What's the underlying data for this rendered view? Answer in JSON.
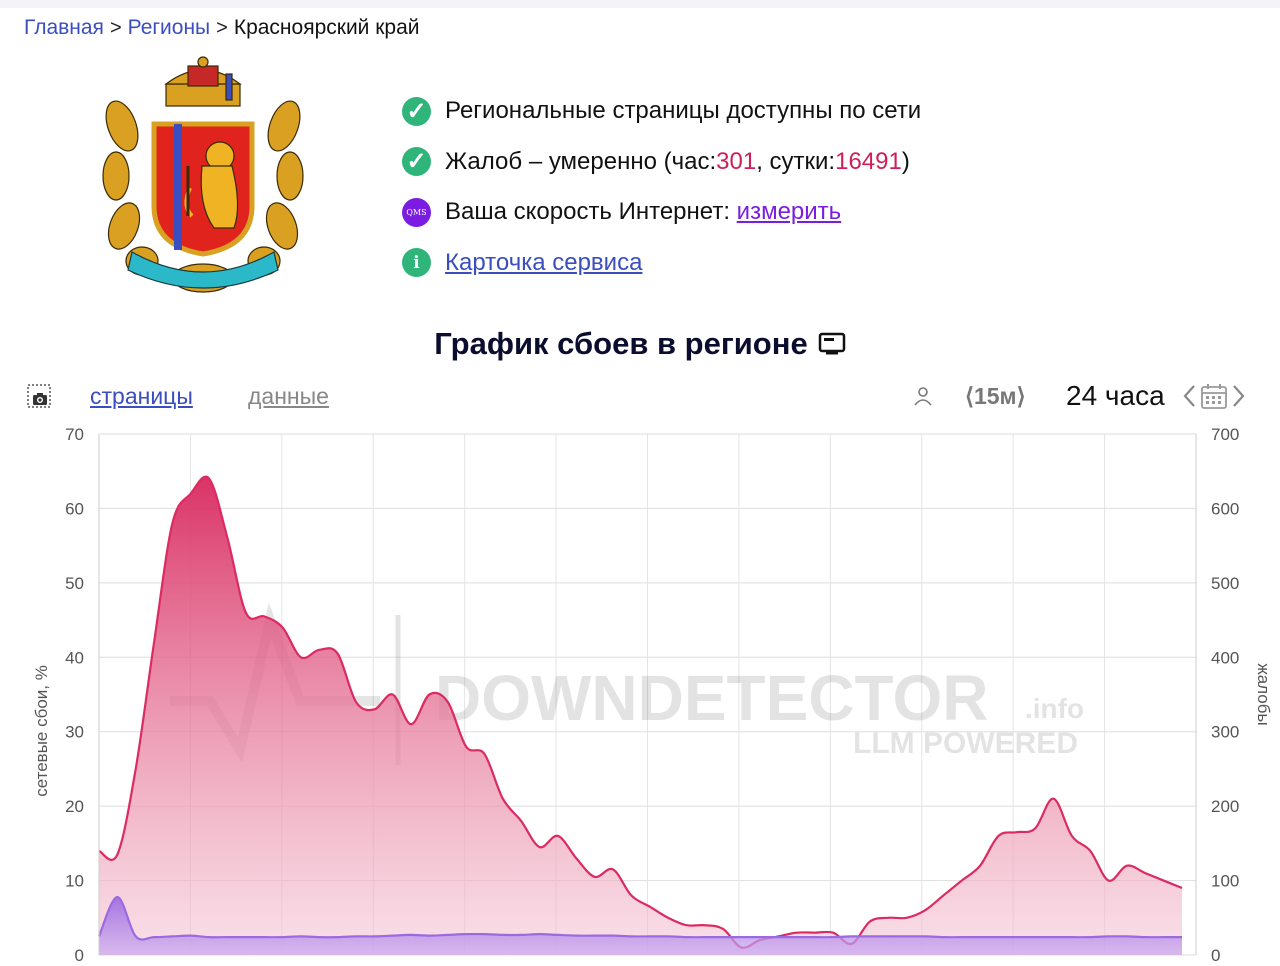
{
  "breadcrumb": {
    "items": [
      "Главная",
      "Регионы"
    ],
    "current": "Красноярский край",
    "separator": ">"
  },
  "status": {
    "pages_available": "Региональные страницы доступны по сети",
    "complaints_prefix": "Жалоб – умеренно (час: ",
    "complaints_hour": "301",
    "complaints_mid": ", сутки: ",
    "complaints_day": "16491",
    "complaints_suffix": ")",
    "speed_prefix": "Ваша скорость Интернет: ",
    "speed_link": "измерить",
    "service_card": "Карточка сервиса",
    "qms_badge": "QMS",
    "info_badge": "i"
  },
  "chart_section": {
    "title": "График сбоев в регионе"
  },
  "toolbar": {
    "tab_pages": "страницы",
    "tab_data": "данные",
    "interval": "⟨15м⟩",
    "period": "24 часа"
  },
  "watermark": {
    "brand": "DOWNDETECTOR",
    "suffix": ".info",
    "tagline": "LLM POWERED"
  },
  "colors": {
    "failures_line": "#dc2a62",
    "complaints_line": "#9b6ae0",
    "link": "#3b4ec0",
    "accent_number": "#d01f57",
    "ok_icon": "#2fb57a",
    "qms_icon": "#7a1de0"
  },
  "chart_data": {
    "type": "area",
    "title": "График сбоев в регионе",
    "ylabel": "сетевые сбои, %",
    "y2label": "жалобы",
    "ylim": [
      0,
      70
    ],
    "y2lim": [
      0,
      700
    ],
    "yticks": [
      "0",
      "10",
      "20",
      "30",
      "40",
      "50",
      "60",
      "70"
    ],
    "y2ticks": [
      "0",
      "100",
      "200",
      "300",
      "400",
      "500",
      "600",
      "700"
    ],
    "grid": true,
    "x_count": 60,
    "series": [
      {
        "axis": "left",
        "color": "#dc2a62",
        "values": [
          14,
          13.5,
          25,
          42,
          58,
          62,
          64,
          56,
          46,
          45.5,
          44,
          40,
          41,
          40.5,
          34,
          33,
          35,
          31,
          35,
          34,
          28,
          27,
          21,
          18,
          14.5,
          16,
          13,
          10.5,
          11.5,
          8,
          6.5,
          5,
          4,
          4,
          3.5,
          1,
          2,
          2.5,
          3,
          3,
          3,
          1.5,
          4.5,
          5,
          5,
          6,
          8,
          10,
          12,
          16,
          16.5,
          17,
          21,
          16,
          14,
          10,
          12,
          11,
          10,
          9
        ]
      },
      {
        "axis": "right",
        "color": "#9b6ae0",
        "values": [
          25,
          78,
          25,
          24,
          25,
          26,
          24,
          24,
          24,
          24,
          24,
          25,
          24,
          24,
          25,
          25,
          26,
          27,
          26,
          27,
          28,
          28,
          27,
          27,
          28,
          27,
          26,
          26,
          26,
          25,
          25,
          25,
          24,
          24,
          24,
          24,
          24,
          24,
          24,
          24,
          24,
          25,
          25,
          25,
          25,
          25,
          24,
          24,
          24,
          24,
          24,
          24,
          24,
          24,
          24,
          25,
          25,
          24,
          24,
          24
        ]
      }
    ]
  }
}
